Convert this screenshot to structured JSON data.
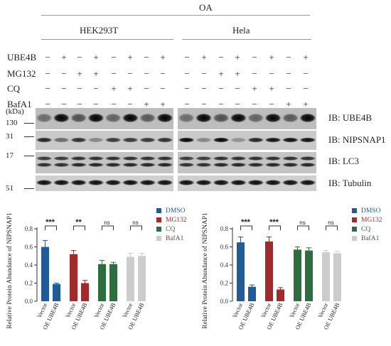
{
  "blot": {
    "header": "OA",
    "cell_lines": [
      "HEK293T",
      "Hela"
    ],
    "treatments": [
      {
        "name": "UBE4B",
        "pattern": [
          "−",
          "+",
          "−",
          "+",
          "−",
          "+",
          "−",
          "+"
        ]
      },
      {
        "name": "MG132",
        "pattern": [
          "−",
          "−",
          "+",
          "+",
          "−",
          "−",
          "−",
          "−"
        ]
      },
      {
        "name": "CQ",
        "pattern": [
          "−",
          "−",
          "−",
          "−",
          "+",
          "+",
          "−",
          "−"
        ]
      },
      {
        "name": "BafA1",
        "pattern": [
          "−",
          "−",
          "−",
          "−",
          "−",
          "−",
          "+",
          "+"
        ]
      }
    ],
    "kda_label": "(kDa)",
    "mw_markers": [
      "130",
      "31",
      "17",
      "51"
    ],
    "ib_labels": [
      "IB: UBE4B",
      "IB: NIPSNAP1",
      "IB: LC3",
      "IB: Tubulin"
    ]
  },
  "chart_data": [
    {
      "type": "bar",
      "ylabel": "Relative Protein Abundance of NIPSNAP1",
      "ylim": [
        0,
        0.8
      ],
      "yticks": [
        "0.0",
        "0.2",
        "0.4",
        "0.6",
        "0.8"
      ],
      "tick_labels": [
        "Vector",
        "OE UBE4B",
        "Vector",
        "OE UBE4B",
        "Vector",
        "OE UBE4B",
        "Vector",
        "OE UBE4B"
      ],
      "series": [
        {
          "name": "DMSO",
          "color": "#1f5c99",
          "values": [
            0.6,
            0.19
          ],
          "errors": [
            0.07,
            0.01
          ]
        },
        {
          "name": "MG132",
          "color": "#a32a2a",
          "values": [
            0.52,
            0.2
          ],
          "errors": [
            0.04,
            0.03
          ]
        },
        {
          "name": "CQ",
          "color": "#2d6e3e",
          "values": [
            0.41,
            0.41
          ],
          "errors": [
            0.04,
            0.02
          ]
        },
        {
          "name": "BafA1",
          "color": "#cccccc",
          "values": [
            0.49,
            0.5
          ],
          "errors": [
            0.04,
            0.03
          ]
        }
      ],
      "significance": [
        "***",
        "**",
        "ns",
        "ns"
      ]
    },
    {
      "type": "bar",
      "ylabel": "Relative Protein Abundance of NIPSNAP1",
      "ylim": [
        0,
        0.8
      ],
      "yticks": [
        "0.0",
        "0.2",
        "0.4",
        "0.6",
        "0.8"
      ],
      "tick_labels": [
        "Vector",
        "OE UBE4B",
        "Vector",
        "OE UBE4B",
        "Vector",
        "OE UBE4B",
        "Vector",
        "OE UBE4B"
      ],
      "series": [
        {
          "name": "DMSO",
          "color": "#1f5c99",
          "values": [
            0.65,
            0.16
          ],
          "errors": [
            0.06,
            0.02
          ]
        },
        {
          "name": "MG132",
          "color": "#a32a2a",
          "values": [
            0.66,
            0.13
          ],
          "errors": [
            0.05,
            0.02
          ]
        },
        {
          "name": "CQ",
          "color": "#2d6e3e",
          "values": [
            0.57,
            0.56
          ],
          "errors": [
            0.03,
            0.03
          ]
        },
        {
          "name": "BafA1",
          "color": "#cccccc",
          "values": [
            0.54,
            0.53
          ],
          "errors": [
            0.02,
            0.02
          ]
        }
      ],
      "significance": [
        "***",
        "***",
        "ns",
        "ns"
      ]
    }
  ]
}
